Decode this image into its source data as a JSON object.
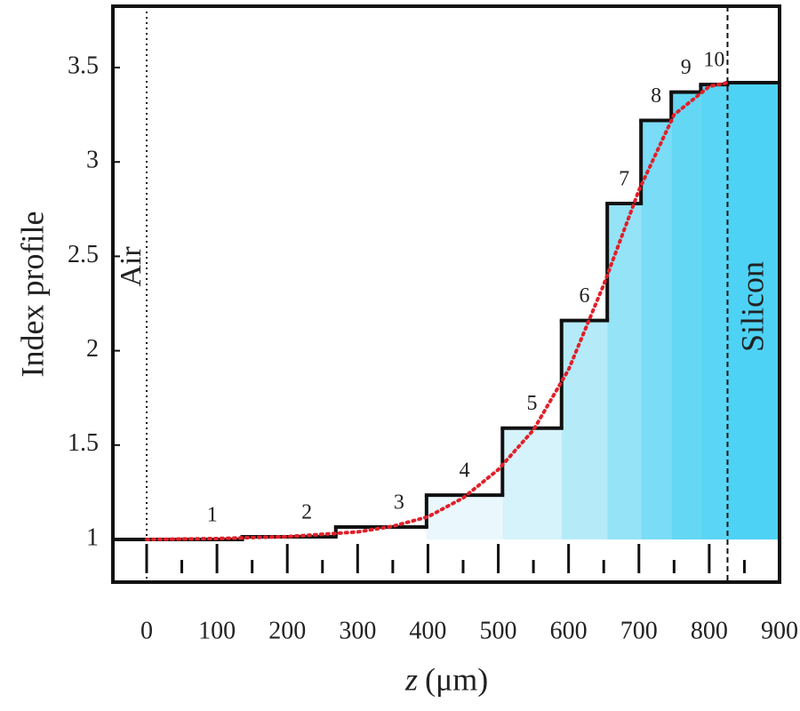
{
  "chart_data": {
    "type": "step",
    "ylabel": "Index profile",
    "xlabel_var": "z",
    "xlabel_unit": "(μm)",
    "xlim": [
      -48,
      900
    ],
    "ylim": [
      0.774,
      3.825
    ],
    "xticks": [
      0,
      100,
      200,
      300,
      400,
      500,
      600,
      700,
      800,
      900
    ],
    "xminor": [
      50,
      150,
      250,
      350,
      450,
      550,
      650,
      750,
      850
    ],
    "yticks": [
      1,
      1.5,
      2,
      2.5,
      3,
      3.5
    ],
    "edges": [
      0,
      136,
      269,
      398,
      506,
      590,
      655,
      703,
      746,
      788,
      826,
      900
    ],
    "values": [
      1.0,
      1.014,
      1.066,
      1.235,
      1.59,
      2.16,
      2.78,
      3.22,
      3.37,
      3.41,
      3.42
    ],
    "layer_labels": [
      "1",
      "2",
      "3",
      "4",
      "5",
      "6",
      "7",
      "8",
      "9",
      "10"
    ],
    "colors": [
      "#ffffff",
      "#ffffff",
      "#ffffff",
      "#eaf8fd",
      "#d6f3fb",
      "#b5ebf9",
      "#95e3f7",
      "#7adcf6",
      "#64d7f5",
      "#5ad5f5",
      "#4dd2f5"
    ],
    "line_color": "#111111",
    "profile": {
      "color": "#e0202a",
      "x": [
        0,
        100,
        200,
        300,
        350,
        400,
        450,
        500,
        550,
        600,
        650,
        700,
        750,
        800,
        826
      ],
      "values": [
        1.0,
        1.005,
        1.015,
        1.04,
        1.07,
        1.12,
        1.22,
        1.37,
        1.58,
        1.9,
        2.35,
        2.85,
        3.25,
        3.4,
        3.42
      ]
    },
    "interfaces": [
      0,
      826
    ],
    "interface_labels": [
      "Air",
      "Silicon"
    ]
  }
}
